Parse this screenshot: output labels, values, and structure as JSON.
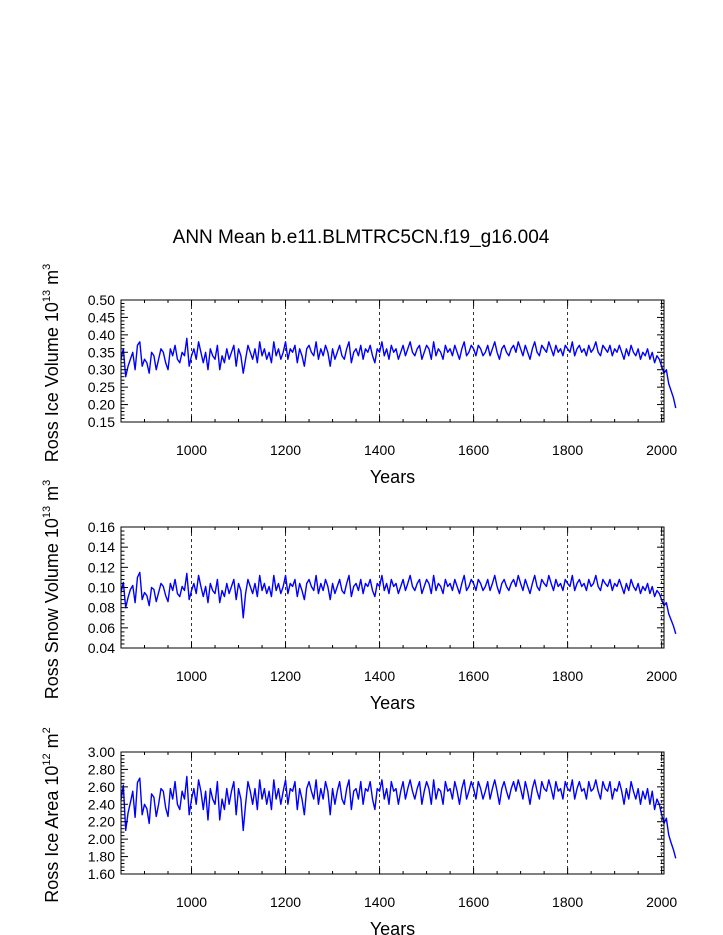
{
  "title": "ANN Mean b.e11.BLMTRC5CN.f19_g16.004",
  "chart_data": [
    {
      "type": "line",
      "name": "ross-ice-volume",
      "ylabel_parts": {
        "prefix": "Ross Ice Volume 10",
        "exp": "13",
        "unit": " m",
        "unit_exp": "3"
      },
      "xlabel": "Years",
      "xlim": [
        850,
        2005
      ],
      "ylim": [
        0.15,
        0.5
      ],
      "x_ticks": [
        1000,
        1200,
        1400,
        1600,
        1800,
        2000
      ],
      "x_tick_labels": [
        "1000",
        "1200",
        "1400",
        "1600",
        "1800",
        "2000"
      ],
      "y_ticks": [
        0.15,
        0.2,
        0.25,
        0.3,
        0.35,
        0.4,
        0.45,
        0.5
      ],
      "y_tick_labels": [
        "0.15",
        "0.20",
        "0.25",
        "0.30",
        "0.35",
        "0.40",
        "0.45",
        "0.50"
      ],
      "grid_x": [
        1000,
        1200,
        1400,
        1600,
        1800,
        2000
      ],
      "color": "#0000ff",
      "series": [
        {
          "name": "Ross Ice Volume",
          "x_start": 850,
          "x_step": 5,
          "values": [
            0.33,
            0.36,
            0.28,
            0.31,
            0.33,
            0.35,
            0.3,
            0.37,
            0.38,
            0.31,
            0.33,
            0.32,
            0.29,
            0.35,
            0.34,
            0.3,
            0.33,
            0.36,
            0.35,
            0.32,
            0.3,
            0.36,
            0.34,
            0.37,
            0.33,
            0.32,
            0.35,
            0.34,
            0.39,
            0.31,
            0.34,
            0.36,
            0.33,
            0.38,
            0.35,
            0.32,
            0.35,
            0.3,
            0.36,
            0.34,
            0.33,
            0.37,
            0.3,
            0.34,
            0.32,
            0.36,
            0.33,
            0.35,
            0.37,
            0.31,
            0.36,
            0.34,
            0.29,
            0.33,
            0.37,
            0.35,
            0.33,
            0.36,
            0.32,
            0.38,
            0.34,
            0.36,
            0.33,
            0.35,
            0.32,
            0.38,
            0.34,
            0.36,
            0.33,
            0.35,
            0.38,
            0.33,
            0.36,
            0.35,
            0.37,
            0.32,
            0.36,
            0.34,
            0.31,
            0.36,
            0.37,
            0.35,
            0.34,
            0.38,
            0.33,
            0.36,
            0.34,
            0.37,
            0.35,
            0.31,
            0.36,
            0.33,
            0.35,
            0.37,
            0.34,
            0.33,
            0.36,
            0.38,
            0.32,
            0.35,
            0.36,
            0.34,
            0.37,
            0.33,
            0.36,
            0.35,
            0.37,
            0.34,
            0.32,
            0.36,
            0.35,
            0.38,
            0.34,
            0.36,
            0.33,
            0.37,
            0.35,
            0.36,
            0.33,
            0.35,
            0.37,
            0.34,
            0.36,
            0.38,
            0.35,
            0.34,
            0.36,
            0.37,
            0.33,
            0.35,
            0.37,
            0.36,
            0.33,
            0.38,
            0.34,
            0.36,
            0.35,
            0.33,
            0.37,
            0.35,
            0.36,
            0.34,
            0.37,
            0.35,
            0.33,
            0.36,
            0.38,
            0.34,
            0.35,
            0.37,
            0.36,
            0.34,
            0.37,
            0.36,
            0.34,
            0.35,
            0.37,
            0.34,
            0.36,
            0.38,
            0.35,
            0.33,
            0.36,
            0.37,
            0.35,
            0.34,
            0.36,
            0.37,
            0.35,
            0.38,
            0.36,
            0.34,
            0.37,
            0.35,
            0.33,
            0.36,
            0.38,
            0.35,
            0.34,
            0.37,
            0.36,
            0.35,
            0.38,
            0.36,
            0.34,
            0.37,
            0.35,
            0.36,
            0.34,
            0.37,
            0.36,
            0.35,
            0.38,
            0.34,
            0.36,
            0.37,
            0.35,
            0.36,
            0.34,
            0.37,
            0.35,
            0.36,
            0.38,
            0.35,
            0.34,
            0.37,
            0.36,
            0.35,
            0.37,
            0.34,
            0.36,
            0.35,
            0.37,
            0.35,
            0.33,
            0.36,
            0.34,
            0.37,
            0.35,
            0.34,
            0.36,
            0.33,
            0.35,
            0.34,
            0.36,
            0.33,
            0.35,
            0.32,
            0.34,
            0.33,
            0.31,
            0.29,
            0.3,
            0.26,
            0.24,
            0.22,
            0.19
          ]
        }
      ]
    },
    {
      "type": "line",
      "name": "ross-snow-volume",
      "ylabel_parts": {
        "prefix": "Ross Snow Volume 10",
        "exp": "13",
        "unit": " m",
        "unit_exp": "3"
      },
      "xlabel": "Years",
      "xlim": [
        850,
        2005
      ],
      "ylim": [
        0.04,
        0.16
      ],
      "x_ticks": [
        1000,
        1200,
        1400,
        1600,
        1800,
        2000
      ],
      "x_tick_labels": [
        "1000",
        "1200",
        "1400",
        "1600",
        "1800",
        "2000"
      ],
      "y_ticks": [
        0.04,
        0.06,
        0.08,
        0.1,
        0.12,
        0.14,
        0.16
      ],
      "y_tick_labels": [
        "0.04",
        "0.06",
        "0.08",
        "0.10",
        "0.12",
        "0.14",
        "0.16"
      ],
      "grid_x": [
        1000,
        1200,
        1400,
        1600,
        1800,
        2000
      ],
      "color": "#0000ff",
      "series": [
        {
          "name": "Ross Snow Volume",
          "x_start": 850,
          "x_step": 5,
          "values": [
            0.095,
            0.105,
            0.08,
            0.09,
            0.098,
            0.102,
            0.085,
            0.11,
            0.115,
            0.088,
            0.095,
            0.092,
            0.082,
            0.1,
            0.098,
            0.086,
            0.095,
            0.104,
            0.101,
            0.092,
            0.086,
            0.104,
            0.097,
            0.108,
            0.094,
            0.091,
            0.101,
            0.097,
            0.114,
            0.088,
            0.097,
            0.104,
            0.094,
            0.112,
            0.101,
            0.091,
            0.101,
            0.085,
            0.104,
            0.097,
            0.094,
            0.108,
            0.085,
            0.097,
            0.091,
            0.104,
            0.094,
            0.101,
            0.108,
            0.088,
            0.104,
            0.097,
            0.07,
            0.094,
            0.108,
            0.101,
            0.094,
            0.104,
            0.091,
            0.112,
            0.097,
            0.104,
            0.094,
            0.101,
            0.091,
            0.112,
            0.097,
            0.104,
            0.094,
            0.101,
            0.112,
            0.094,
            0.104,
            0.101,
            0.108,
            0.091,
            0.104,
            0.097,
            0.088,
            0.104,
            0.108,
            0.101,
            0.097,
            0.112,
            0.094,
            0.104,
            0.097,
            0.108,
            0.101,
            0.088,
            0.104,
            0.094,
            0.101,
            0.108,
            0.097,
            0.094,
            0.104,
            0.112,
            0.091,
            0.101,
            0.104,
            0.097,
            0.108,
            0.094,
            0.104,
            0.101,
            0.108,
            0.097,
            0.091,
            0.104,
            0.101,
            0.112,
            0.097,
            0.104,
            0.094,
            0.108,
            0.101,
            0.104,
            0.094,
            0.101,
            0.108,
            0.097,
            0.104,
            0.112,
            0.101,
            0.097,
            0.104,
            0.108,
            0.094,
            0.101,
            0.108,
            0.104,
            0.094,
            0.112,
            0.097,
            0.104,
            0.101,
            0.094,
            0.108,
            0.101,
            0.104,
            0.097,
            0.108,
            0.101,
            0.094,
            0.104,
            0.112,
            0.097,
            0.101,
            0.108,
            0.104,
            0.097,
            0.108,
            0.104,
            0.097,
            0.101,
            0.108,
            0.097,
            0.104,
            0.112,
            0.101,
            0.094,
            0.104,
            0.108,
            0.101,
            0.097,
            0.104,
            0.108,
            0.101,
            0.112,
            0.104,
            0.097,
            0.108,
            0.101,
            0.094,
            0.104,
            0.112,
            0.101,
            0.097,
            0.108,
            0.104,
            0.101,
            0.112,
            0.104,
            0.097,
            0.108,
            0.101,
            0.104,
            0.097,
            0.108,
            0.104,
            0.101,
            0.112,
            0.097,
            0.104,
            0.108,
            0.101,
            0.104,
            0.097,
            0.108,
            0.101,
            0.104,
            0.112,
            0.101,
            0.097,
            0.108,
            0.104,
            0.101,
            0.108,
            0.097,
            0.104,
            0.101,
            0.108,
            0.101,
            0.094,
            0.104,
            0.097,
            0.108,
            0.101,
            0.097,
            0.104,
            0.094,
            0.101,
            0.097,
            0.104,
            0.094,
            0.101,
            0.091,
            0.097,
            0.094,
            0.088,
            0.082,
            0.085,
            0.074,
            0.068,
            0.062,
            0.054
          ]
        }
      ]
    },
    {
      "type": "line",
      "name": "ross-ice-area",
      "ylabel_parts": {
        "prefix": "Ross Ice Area 10",
        "exp": "12",
        "unit": " m",
        "unit_exp": "2"
      },
      "xlabel": "Years",
      "xlim": [
        850,
        2005
      ],
      "ylim": [
        1.6,
        3.0
      ],
      "x_ticks": [
        1000,
        1200,
        1400,
        1600,
        1800,
        2000
      ],
      "x_tick_labels": [
        "1000",
        "1200",
        "1400",
        "1600",
        "1800",
        "2000"
      ],
      "y_ticks": [
        1.6,
        1.8,
        2.0,
        2.2,
        2.4,
        2.6,
        2.8,
        3.0
      ],
      "y_tick_labels": [
        "1.60",
        "1.80",
        "2.00",
        "2.20",
        "2.40",
        "2.60",
        "2.80",
        "3.00"
      ],
      "grid_x": [
        1000,
        1200,
        1400,
        1600,
        1800,
        2000
      ],
      "color": "#0000ff",
      "series": [
        {
          "name": "Ross Ice Area",
          "x_start": 850,
          "x_step": 5,
          "values": [
            2.45,
            2.62,
            2.1,
            2.3,
            2.42,
            2.55,
            2.25,
            2.65,
            2.7,
            2.28,
            2.4,
            2.35,
            2.18,
            2.52,
            2.48,
            2.26,
            2.4,
            2.58,
            2.55,
            2.36,
            2.26,
            2.58,
            2.46,
            2.66,
            2.4,
            2.34,
            2.55,
            2.46,
            2.72,
            2.28,
            2.46,
            2.58,
            2.4,
            2.68,
            2.55,
            2.34,
            2.55,
            2.22,
            2.58,
            2.46,
            2.4,
            2.66,
            2.22,
            2.46,
            2.34,
            2.58,
            2.4,
            2.55,
            2.66,
            2.28,
            2.58,
            2.46,
            2.1,
            2.4,
            2.66,
            2.55,
            2.4,
            2.58,
            2.34,
            2.68,
            2.46,
            2.58,
            2.4,
            2.55,
            2.34,
            2.68,
            2.46,
            2.58,
            2.4,
            2.55,
            2.68,
            2.4,
            2.58,
            2.55,
            2.66,
            2.34,
            2.58,
            2.46,
            2.28,
            2.58,
            2.66,
            2.55,
            2.46,
            2.68,
            2.4,
            2.58,
            2.46,
            2.66,
            2.55,
            2.28,
            2.58,
            2.4,
            2.55,
            2.66,
            2.46,
            2.4,
            2.58,
            2.68,
            2.34,
            2.55,
            2.58,
            2.46,
            2.66,
            2.4,
            2.58,
            2.55,
            2.66,
            2.46,
            2.34,
            2.58,
            2.55,
            2.68,
            2.46,
            2.58,
            2.4,
            2.66,
            2.55,
            2.58,
            2.4,
            2.55,
            2.66,
            2.46,
            2.58,
            2.68,
            2.55,
            2.46,
            2.58,
            2.66,
            2.4,
            2.55,
            2.66,
            2.58,
            2.4,
            2.68,
            2.46,
            2.58,
            2.55,
            2.4,
            2.66,
            2.55,
            2.58,
            2.46,
            2.66,
            2.55,
            2.4,
            2.58,
            2.68,
            2.46,
            2.55,
            2.66,
            2.58,
            2.46,
            2.66,
            2.58,
            2.46,
            2.55,
            2.66,
            2.46,
            2.58,
            2.68,
            2.55,
            2.4,
            2.58,
            2.66,
            2.55,
            2.46,
            2.58,
            2.66,
            2.55,
            2.68,
            2.58,
            2.46,
            2.66,
            2.55,
            2.4,
            2.58,
            2.68,
            2.55,
            2.46,
            2.66,
            2.58,
            2.55,
            2.68,
            2.58,
            2.46,
            2.66,
            2.55,
            2.58,
            2.46,
            2.66,
            2.58,
            2.55,
            2.68,
            2.46,
            2.58,
            2.66,
            2.55,
            2.58,
            2.46,
            2.66,
            2.55,
            2.58,
            2.68,
            2.55,
            2.46,
            2.66,
            2.58,
            2.55,
            2.66,
            2.46,
            2.58,
            2.55,
            2.66,
            2.55,
            2.4,
            2.58,
            2.46,
            2.66,
            2.55,
            2.46,
            2.58,
            2.4,
            2.55,
            2.46,
            2.58,
            2.4,
            2.55,
            2.34,
            2.46,
            2.4,
            2.28,
            2.18,
            2.24,
            2.05,
            1.96,
            1.88,
            1.78
          ]
        }
      ]
    }
  ]
}
